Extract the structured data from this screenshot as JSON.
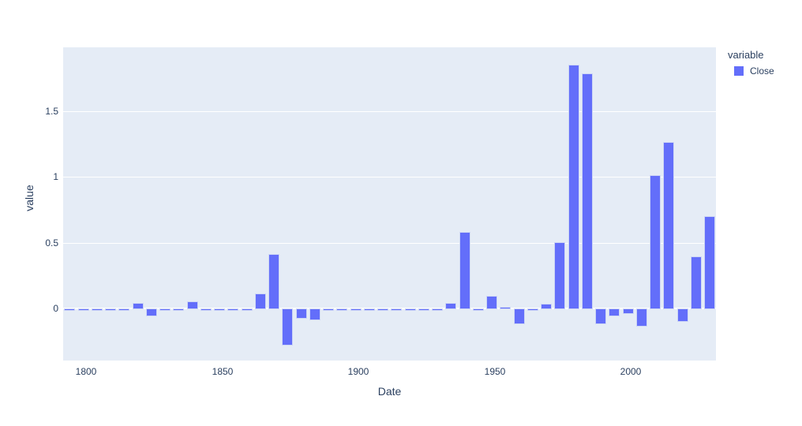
{
  "chart_data": {
    "type": "bar",
    "title": "",
    "xlabel": "Date",
    "ylabel": "value",
    "legend_title": "variable",
    "legend_position": "top-right",
    "grid": "horizontal-only",
    "plot_bg_color": "#E5ECF6",
    "grid_color": "#FFFFFF",
    "text_color": "#2A3F5F",
    "bar_color": "#636EFA",
    "bar_edge_color": "#CDD6F5",
    "x_ticks": [
      1800,
      1850,
      1900,
      1950,
      2000
    ],
    "y_ticks": [
      0,
      0.5,
      1,
      1.5
    ],
    "x_range": [
      1791.6,
      2031.6
    ],
    "y_range": [
      -0.4,
      1.98
    ],
    "series": [
      {
        "name": "Close",
        "x": [
          1794,
          1799,
          1804,
          1809,
          1814,
          1819,
          1824,
          1829,
          1834,
          1839,
          1844,
          1849,
          1854,
          1859,
          1864,
          1869,
          1874,
          1879,
          1884,
          1889,
          1894,
          1899,
          1904,
          1909,
          1914,
          1919,
          1924,
          1929,
          1934,
          1939,
          1944,
          1949,
          1954,
          1959,
          1964,
          1969,
          1974,
          1979,
          1984,
          1989,
          1994,
          1999,
          2004,
          2009,
          2014,
          2019,
          2024,
          2029
        ],
        "values": [
          -0.005,
          -0.005,
          -0.005,
          -0.005,
          -0.005,
          0.05,
          -0.06,
          -0.005,
          -0.005,
          0.06,
          -0.01,
          -0.01,
          -0.005,
          -0.005,
          0.12,
          0.42,
          -0.28,
          -0.08,
          -0.09,
          -0.005,
          -0.005,
          -0.005,
          -0.005,
          -0.005,
          -0.005,
          -0.005,
          -0.005,
          -0.005,
          0.05,
          0.59,
          -0.01,
          0.1,
          0.02,
          -0.12,
          -0.01,
          0.04,
          0.51,
          1.86,
          1.79,
          -0.12,
          -0.06,
          -0.04,
          -0.14,
          1.02,
          1.27,
          -0.1,
          0.4,
          0.71
        ]
      }
    ]
  }
}
